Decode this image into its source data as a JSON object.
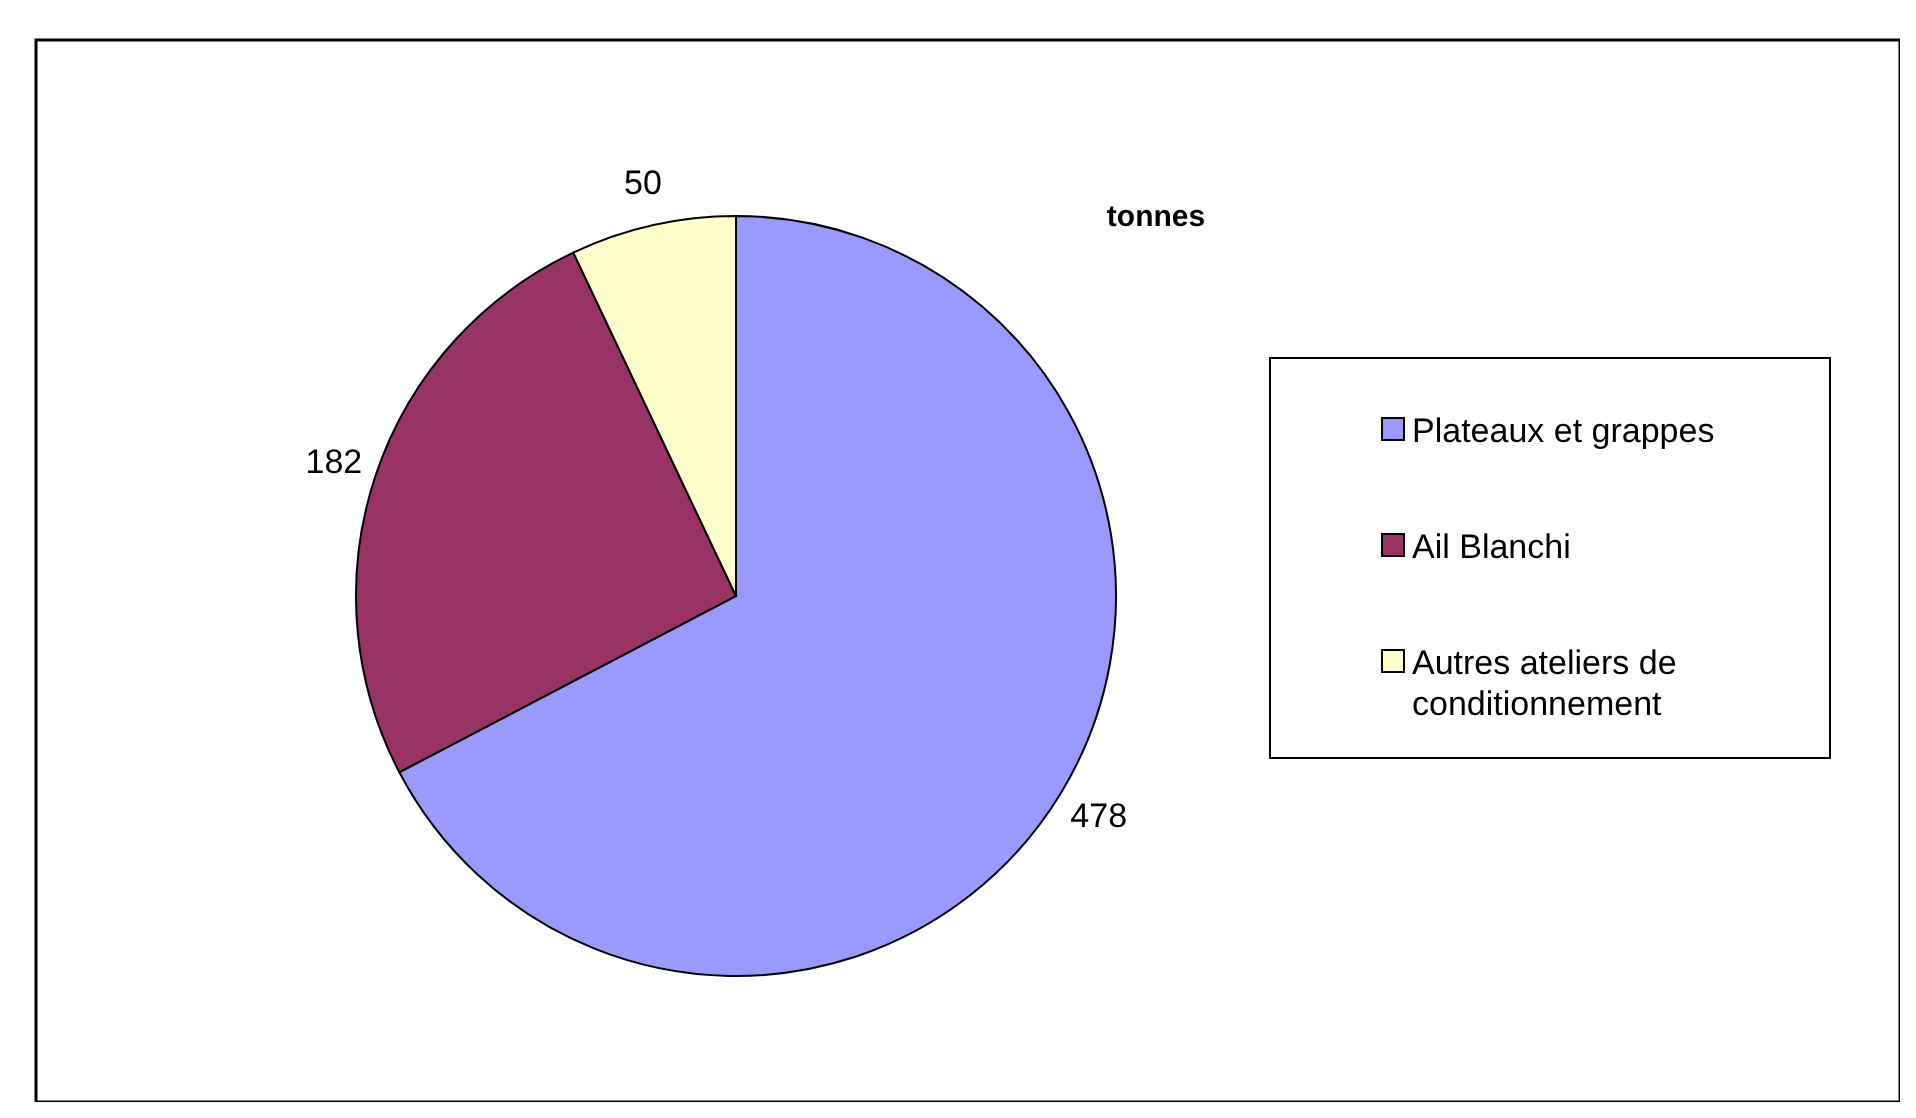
{
  "chart_data": {
    "type": "pie",
    "title": "tonnes",
    "categories": [
      "Plateaux et grappes",
      "Ail Blanchi",
      "Autres ateliers de conditionnement"
    ],
    "values": [
      478,
      182,
      50
    ],
    "colors": [
      "#9999ff",
      "#993366",
      "#ffffcc"
    ],
    "data_labels": true,
    "legend": "right"
  }
}
